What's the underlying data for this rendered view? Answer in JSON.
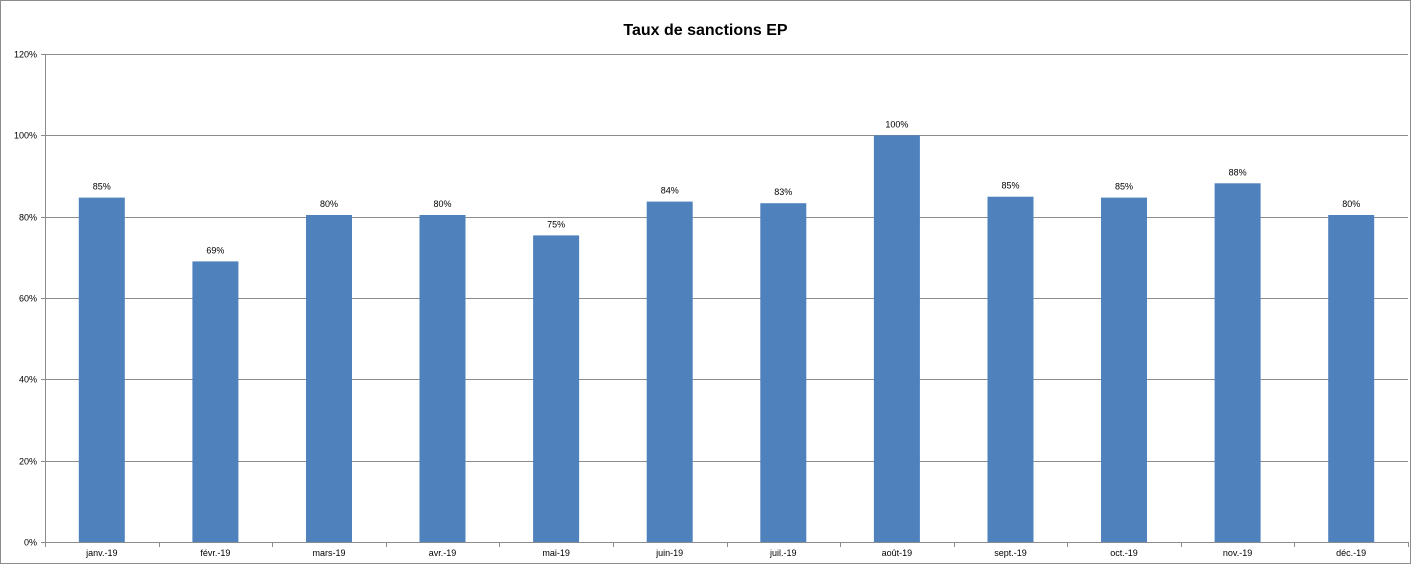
{
  "chart_data": {
    "type": "bar",
    "title": "Taux de sanctions  EP",
    "xlabel": "",
    "ylabel": "",
    "categories": [
      "janv.-19",
      "févr.-19",
      "mars-19",
      "avr.-19",
      "mai-19",
      "juin-19",
      "juil.-19",
      "août-19",
      "sept.-19",
      "oct.-19",
      "nov.-19",
      "déc.-19"
    ],
    "values": [
      0.847,
      0.69,
      0.804,
      0.804,
      0.754,
      0.837,
      0.833,
      1.0,
      0.849,
      0.847,
      0.882,
      0.804
    ],
    "data_labels": [
      "85%",
      "69%",
      "80%",
      "80%",
      "75%",
      "84%",
      "83%",
      "100%",
      "85%",
      "85%",
      "88%",
      "80%"
    ],
    "yticks": [
      "0%",
      "20%",
      "40%",
      "60%",
      "80%",
      "100%",
      "120%"
    ],
    "ytick_values": [
      0,
      0.2,
      0.4,
      0.6,
      0.8,
      1.0,
      1.2
    ],
    "ylim": [
      0,
      1.2
    ],
    "grid": true,
    "legend": "none",
    "bar_color": "#4F81BD"
  }
}
